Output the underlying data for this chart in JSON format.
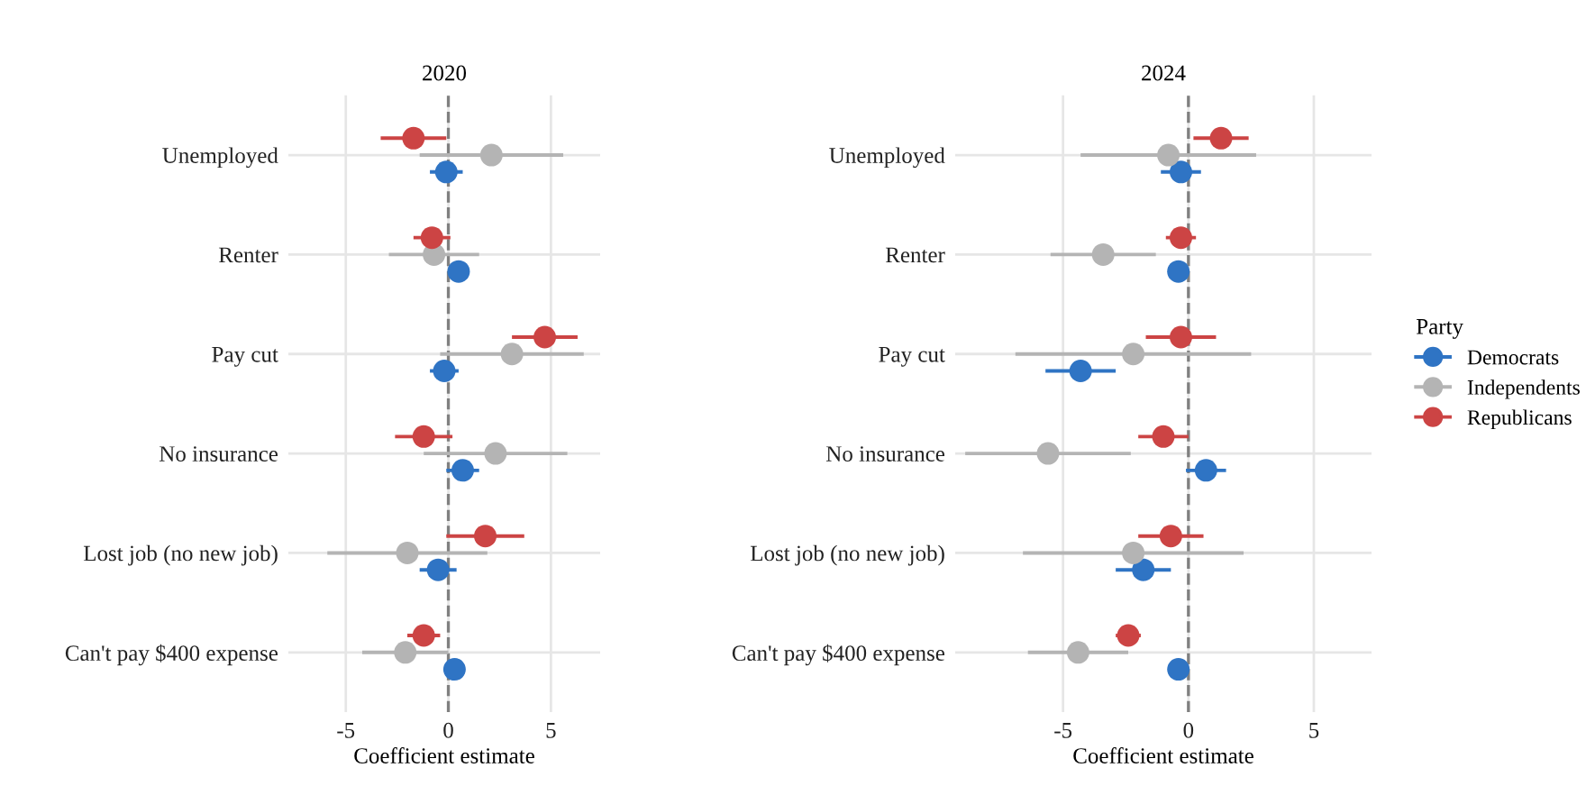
{
  "chart_data": [
    {
      "type": "scatter",
      "orientation": "horizontal",
      "title": "2020",
      "xlabel": "Coefficient estimate",
      "categories": [
        "Unemployed",
        "Renter",
        "Pay cut",
        "No insurance",
        "Lost job (no new job)",
        "Can't pay $400 expense"
      ],
      "xlim": [
        -7.8,
        7.4
      ],
      "xticks": [
        -5,
        0,
        5
      ],
      "grid": true,
      "marker": "circle",
      "ref_lines": [
        {
          "axis": "x",
          "value": 0,
          "line_style": "dashed",
          "color": "#808080"
        }
      ],
      "series": [
        {
          "color": "#2f74c4",
          "values": [
            -0.1,
            0.5,
            -0.2,
            0.7,
            -0.5,
            0.3
          ],
          "errors": [
            0.8,
            null,
            0.7,
            0.8,
            0.9,
            null
          ]
        },
        {
          "color": "#b4b4b4",
          "values": [
            2.1,
            -0.7,
            3.1,
            2.3,
            -2.0,
            -2.1
          ],
          "errors": [
            3.5,
            2.2,
            3.5,
            3.5,
            3.9,
            2.1
          ]
        },
        {
          "color": "#cc4444",
          "values": [
            -1.7,
            -0.8,
            4.7,
            -1.2,
            1.8,
            -1.2
          ],
          "errors": [
            1.6,
            0.9,
            1.6,
            1.4,
            1.9,
            0.8
          ]
        }
      ]
    },
    {
      "type": "scatter",
      "orientation": "horizontal",
      "title": "2024",
      "xlabel": "Coefficient estimate",
      "legend_title": "Party",
      "categories": [
        "Unemployed",
        "Renter",
        "Pay cut",
        "No insurance",
        "Lost job (no new job)",
        "Can't pay $400 expense"
      ],
      "xlim": [
        -9.3,
        7.3
      ],
      "xticks": [
        -5,
        0,
        5
      ],
      "grid": true,
      "legend": "right",
      "marker": "circle",
      "ref_lines": [
        {
          "axis": "x",
          "value": 0,
          "line_style": "dashed",
          "color": "#808080"
        }
      ],
      "series": [
        {
          "name": "Democrats",
          "color": "#2f74c4",
          "values": [
            -0.3,
            -0.4,
            -4.3,
            0.7,
            -1.8,
            -0.4
          ],
          "errors": [
            0.8,
            null,
            1.4,
            0.8,
            1.1,
            null
          ]
        },
        {
          "name": "Independents",
          "color": "#b4b4b4",
          "values": [
            -0.8,
            -3.4,
            -2.2,
            -5.6,
            -2.2,
            -4.4
          ],
          "errors": [
            3.5,
            2.1,
            4.7,
            3.3,
            4.4,
            2.0
          ]
        },
        {
          "name": "Republicans",
          "color": "#cc4444",
          "values": [
            1.3,
            -0.3,
            -0.3,
            -1.0,
            -0.7,
            -2.4
          ],
          "errors": [
            1.1,
            0.6,
            1.4,
            1.0,
            1.3,
            0.5
          ]
        }
      ]
    }
  ]
}
